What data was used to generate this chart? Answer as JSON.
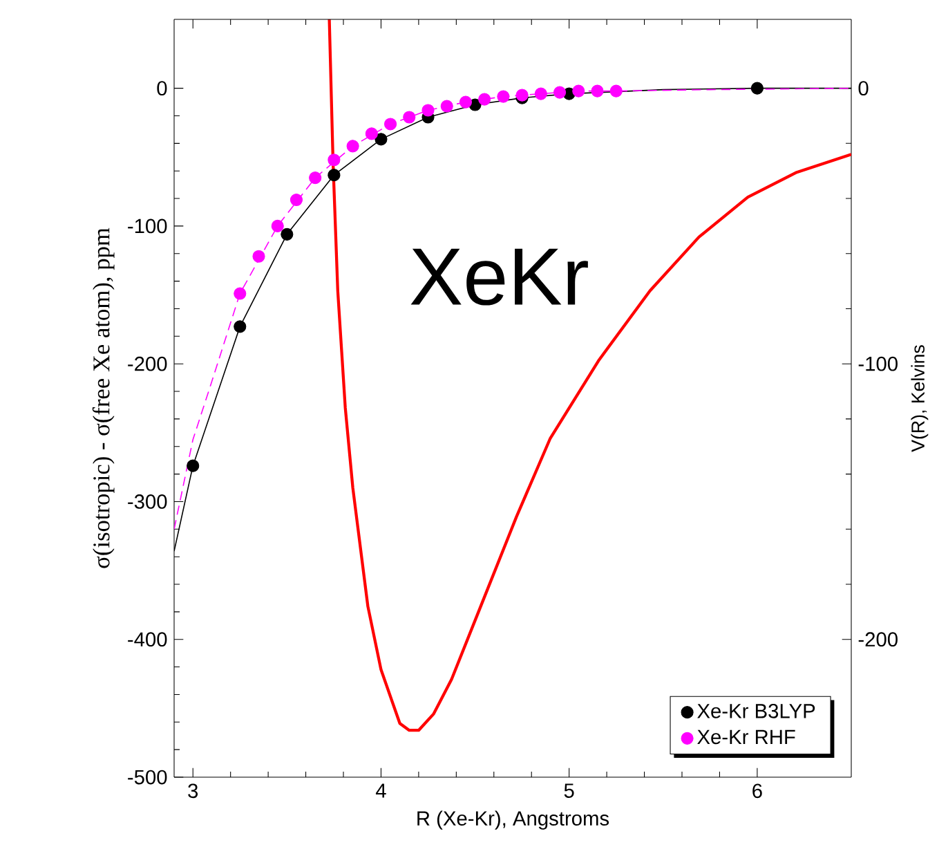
{
  "chart_data": {
    "type": "scatter",
    "xlabel": "R (Xe-Kr), Angstroms",
    "ylabel": "σ(isotropic) - σ(free Xe atom), ppm",
    "y2label": "V(R), Kelvins",
    "annotations": [
      "XeKr"
    ],
    "xlim": [
      2.9,
      6.5
    ],
    "xticks": [
      3,
      4,
      5,
      6
    ],
    "ylim": [
      -500,
      50
    ],
    "yticks": [
      -500,
      -400,
      -300,
      -200,
      -100,
      0
    ],
    "y2lim": [
      -250,
      25
    ],
    "y2ticks": [
      -200,
      -100,
      0
    ],
    "grid": false,
    "legend": "bottom right",
    "series": [
      {
        "type": "line",
        "color": "#000000",
        "line_style": "solid",
        "marker": "none",
        "x": [
          2.9,
          3.0,
          3.25,
          3.5,
          3.75,
          4.0,
          4.25,
          4.5,
          4.75,
          5.0,
          5.5,
          6.0,
          6.5
        ],
        "values": [
          -336,
          -274,
          -173,
          -106,
          -63,
          -37,
          -21,
          -12,
          -7,
          -4,
          -1,
          0,
          0
        ]
      },
      {
        "type": "line",
        "color": "#ff00ff",
        "line_style": "dashed",
        "marker": "none",
        "x": [
          2.9,
          3.0,
          3.1,
          3.25,
          3.45,
          3.65,
          3.85,
          4.05,
          4.25,
          4.45,
          4.65,
          4.85,
          5.05,
          5.25,
          5.75,
          6.5
        ],
        "values": [
          -320,
          -255,
          -213,
          -149,
          -100,
          -65,
          -42,
          -26,
          -16,
          -10,
          -6,
          -4,
          -2,
          -2,
          -1,
          0
        ]
      },
      {
        "name": "Xe-Kr B3LYP",
        "color": "#000000",
        "marker": "circle",
        "x": [
          3.0,
          3.25,
          3.5,
          3.75,
          4.0,
          4.25,
          4.5,
          4.75,
          5.0,
          6.0
        ],
        "values": [
          -274,
          -173,
          -106,
          -63,
          -37,
          -21,
          -12,
          -7,
          -4,
          0
        ]
      },
      {
        "name": "Xe-Kr RHF",
        "color": "#ff00ff",
        "marker": "circle",
        "x": [
          3.25,
          3.35,
          3.45,
          3.55,
          3.65,
          3.75,
          3.85,
          3.95,
          4.05,
          4.15,
          4.25,
          4.35,
          4.45,
          4.55,
          4.65,
          4.75,
          4.85,
          4.95,
          5.05,
          5.15,
          5.25
        ],
        "values": [
          -149,
          -122,
          -100,
          -81,
          -65,
          -52,
          -42,
          -33,
          -26,
          -21,
          -16,
          -13,
          -10,
          -8,
          -6,
          -5,
          -4,
          -3,
          -2,
          -2,
          -2
        ]
      },
      {
        "type": "line",
        "axis": "y2",
        "color": "#ff0000",
        "line_style": "solid",
        "marker": "none",
        "x": [
          3.725,
          3.745,
          3.77,
          3.81,
          3.85,
          3.93,
          4.0,
          4.1,
          4.15,
          4.2,
          4.28,
          4.375,
          4.53,
          4.72,
          4.9,
          5.16,
          5.43,
          5.69,
          5.95,
          6.21,
          6.5
        ],
        "values": [
          25,
          -27,
          -73.5,
          -116,
          -145,
          -188,
          -211,
          -230.5,
          -233,
          -233,
          -227,
          -214.5,
          -188,
          -155.5,
          -127,
          -98.5,
          -73.5,
          -54,
          -39.5,
          -30.5,
          -24
        ]
      }
    ]
  }
}
